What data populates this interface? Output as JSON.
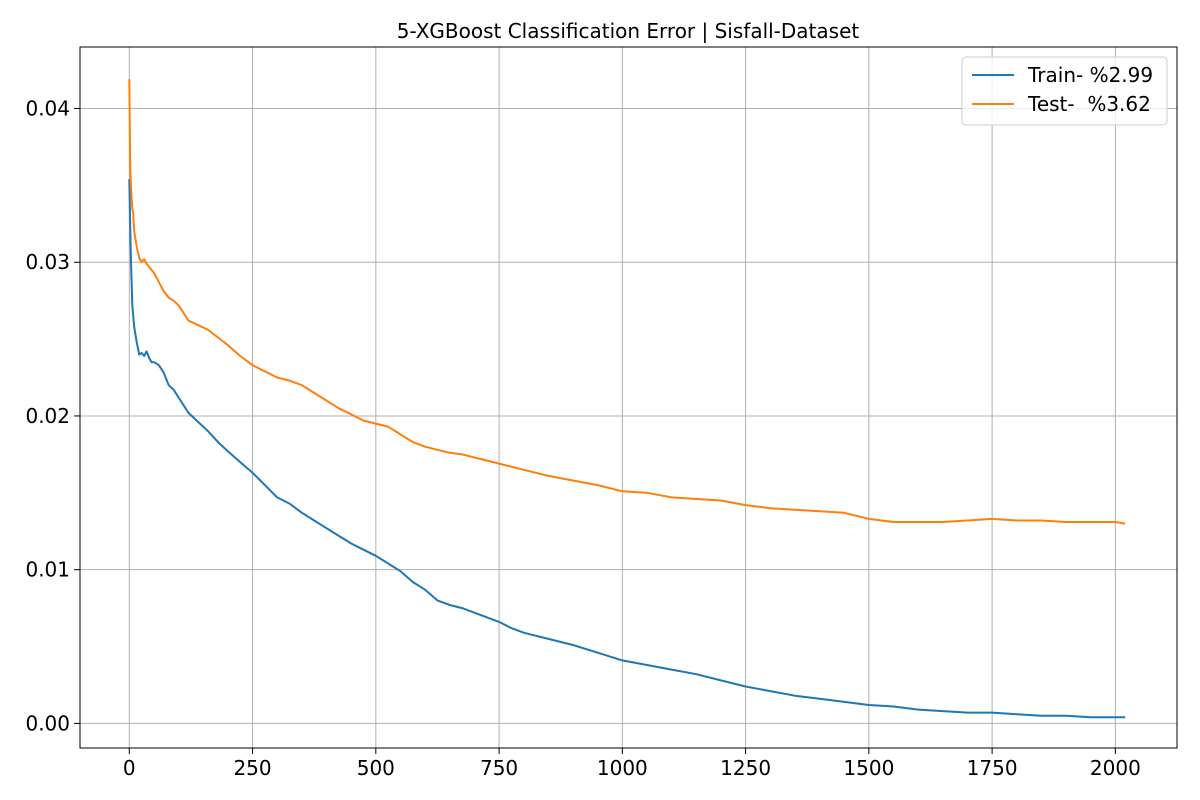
{
  "chart_data": {
    "type": "line",
    "title": "5-XGBoost Classification Error | Sisfall-Dataset",
    "xlabel": "",
    "ylabel": "",
    "xlim": [
      -100,
      2125
    ],
    "ylim": [
      -0.0016,
      0.044
    ],
    "xticks": [
      0,
      250,
      500,
      750,
      1000,
      1250,
      1500,
      1750,
      2000
    ],
    "yticks": [
      0.0,
      0.01,
      0.02,
      0.03,
      0.04
    ],
    "ytick_labels": [
      "0.00",
      "0.01",
      "0.02",
      "0.03",
      "0.04"
    ],
    "grid": true,
    "legend_position": "top-right",
    "series": [
      {
        "name": "Train- %2.99",
        "color": "#1f77b4",
        "x": [
          0,
          3,
          6,
          10,
          15,
          20,
          25,
          30,
          35,
          40,
          45,
          50,
          60,
          70,
          80,
          90,
          100,
          120,
          140,
          160,
          180,
          200,
          225,
          250,
          275,
          300,
          325,
          350,
          375,
          400,
          425,
          450,
          475,
          500,
          525,
          550,
          575,
          600,
          625,
          650,
          675,
          700,
          725,
          750,
          775,
          800,
          850,
          900,
          950,
          1000,
          1050,
          1100,
          1150,
          1200,
          1250,
          1300,
          1350,
          1400,
          1450,
          1500,
          1550,
          1600,
          1650,
          1700,
          1750,
          1800,
          1850,
          1900,
          1950,
          2000,
          2020
        ],
        "y": [
          0.0354,
          0.0305,
          0.0272,
          0.0258,
          0.0248,
          0.024,
          0.0241,
          0.0239,
          0.0242,
          0.0238,
          0.0235,
          0.0235,
          0.0233,
          0.0228,
          0.022,
          0.0217,
          0.0212,
          0.0202,
          0.0196,
          0.019,
          0.0183,
          0.0177,
          0.017,
          0.0163,
          0.0155,
          0.0147,
          0.0143,
          0.0137,
          0.0132,
          0.0127,
          0.0122,
          0.0117,
          0.0113,
          0.0109,
          0.0104,
          0.0099,
          0.0092,
          0.0087,
          0.008,
          0.0077,
          0.0075,
          0.0072,
          0.0069,
          0.0066,
          0.0062,
          0.0059,
          0.0055,
          0.0051,
          0.0046,
          0.0041,
          0.0038,
          0.0035,
          0.0032,
          0.0028,
          0.0024,
          0.0021,
          0.0018,
          0.0016,
          0.0014,
          0.0012,
          0.0011,
          0.0009,
          0.0008,
          0.0007,
          0.0007,
          0.0006,
          0.0005,
          0.0005,
          0.0004,
          0.0004,
          0.0004
        ]
      },
      {
        "name": "Test-  %3.62",
        "color": "#ff7f0e",
        "x": [
          0,
          2,
          4,
          6,
          8,
          10,
          15,
          20,
          25,
          30,
          35,
          40,
          45,
          50,
          60,
          70,
          80,
          90,
          100,
          120,
          140,
          160,
          180,
          200,
          225,
          250,
          275,
          300,
          325,
          350,
          375,
          400,
          425,
          450,
          475,
          500,
          525,
          550,
          575,
          600,
          625,
          650,
          675,
          700,
          725,
          750,
          775,
          800,
          850,
          900,
          950,
          1000,
          1050,
          1100,
          1150,
          1200,
          1250,
          1300,
          1350,
          1400,
          1450,
          1500,
          1550,
          1600,
          1650,
          1700,
          1750,
          1800,
          1850,
          1900,
          1950,
          2000,
          2020
        ],
        "y": [
          0.0419,
          0.036,
          0.0345,
          0.0335,
          0.0332,
          0.032,
          0.031,
          0.0303,
          0.03,
          0.0302,
          0.0299,
          0.0297,
          0.0295,
          0.0293,
          0.0287,
          0.0281,
          0.0277,
          0.0275,
          0.0272,
          0.0262,
          0.0259,
          0.0256,
          0.0251,
          0.0246,
          0.0239,
          0.0233,
          0.0229,
          0.0225,
          0.0223,
          0.022,
          0.0215,
          0.021,
          0.0205,
          0.0201,
          0.0197,
          0.0195,
          0.0193,
          0.0188,
          0.0183,
          0.018,
          0.0178,
          0.0176,
          0.0175,
          0.0173,
          0.0171,
          0.0169,
          0.0167,
          0.0165,
          0.0161,
          0.0158,
          0.0155,
          0.0151,
          0.015,
          0.0147,
          0.0146,
          0.0145,
          0.0142,
          0.014,
          0.0139,
          0.0138,
          0.0137,
          0.0133,
          0.0131,
          0.0131,
          0.0131,
          0.0132,
          0.0133,
          0.0132,
          0.0132,
          0.0131,
          0.0131,
          0.0131,
          0.013
        ]
      }
    ]
  }
}
